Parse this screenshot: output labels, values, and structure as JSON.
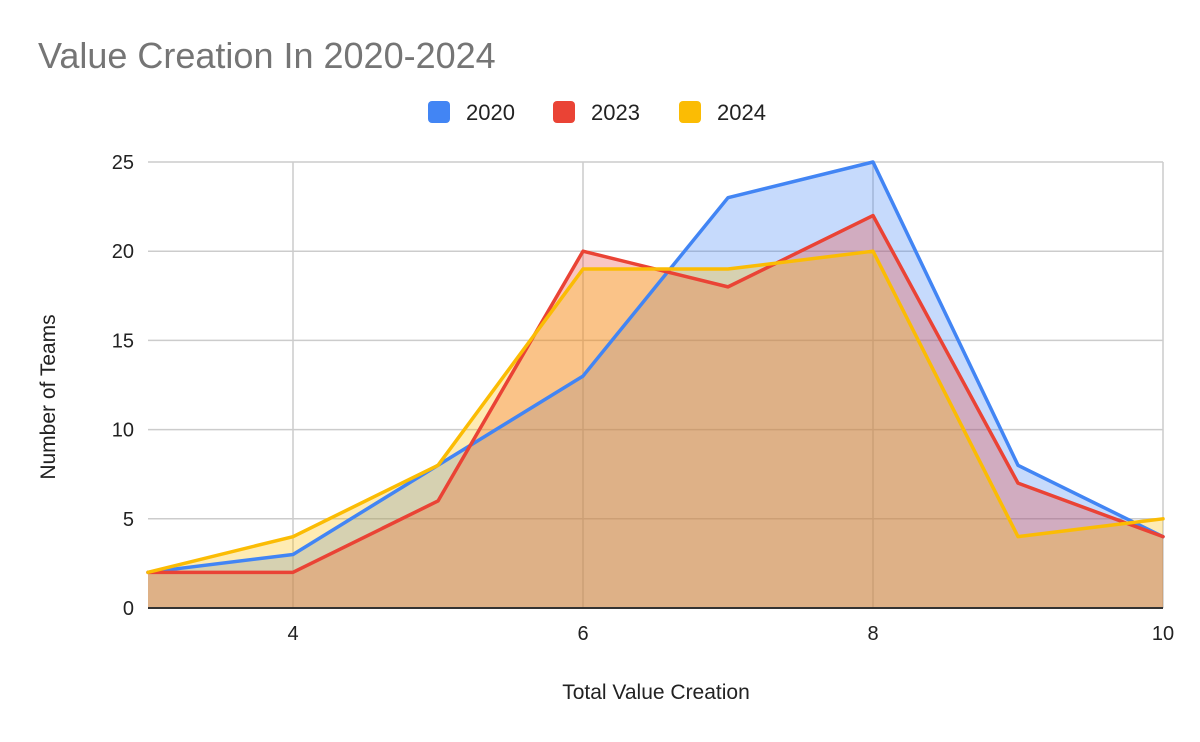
{
  "chart_data": {
    "type": "area",
    "title": "Value Creation In 2020-2024",
    "xlabel": "Total Value Creation",
    "ylabel": "Number of Teams",
    "x": [
      3,
      4,
      5,
      6,
      7,
      8,
      9,
      10
    ],
    "xlim": [
      3,
      10
    ],
    "ylim": [
      0,
      25
    ],
    "x_ticks": [
      4,
      6,
      8,
      10
    ],
    "y_ticks": [
      0,
      5,
      10,
      15,
      20,
      25
    ],
    "grid": true,
    "legend_position": "top-center",
    "series": [
      {
        "name": "2020",
        "color": "#4285F4",
        "fill": "#c9daf8",
        "values": [
          2,
          3,
          8,
          13,
          23,
          25,
          8,
          4
        ]
      },
      {
        "name": "2023",
        "color": "#EA4335",
        "fill": "#e6b8af",
        "values": [
          2,
          2,
          6,
          20,
          18,
          22,
          7,
          4
        ]
      },
      {
        "name": "2024",
        "color": "#FBBC04",
        "fill": "#fce8b2",
        "values": [
          2,
          4,
          8,
          19,
          19,
          20,
          4,
          5
        ]
      }
    ]
  }
}
